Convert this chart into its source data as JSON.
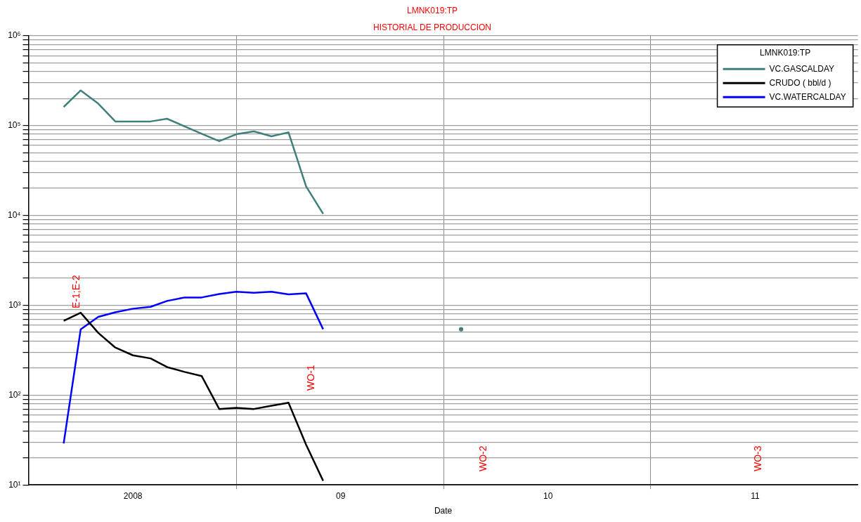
{
  "chart_data": {
    "type": "line",
    "title": "LMNK019:TP",
    "subtitle": "HISTORIAL DE PRODUCCION",
    "xlabel": "Date",
    "legend_title": "LMNK019:TP",
    "legend": "top right",
    "grid": true,
    "log": "y",
    "x": [
      "2007-09-01",
      "2007-10-01",
      "2007-11-01",
      "2007-12-01",
      "2008-01-01",
      "2008-02-01",
      "2008-03-01",
      "2008-04-01",
      "2008-05-01",
      "2008-06-01",
      "2008-07-01",
      "2008-08-01",
      "2008-09-01",
      "2008-10-01",
      "2008-11-01",
      "2008-12-01"
    ],
    "series": [
      {
        "name": "VC.GASCALDAY",
        "color": "#3f7f7c",
        "x": [
          "2007-09-01",
          "2007-10-01",
          "2007-11-01",
          "2007-12-01",
          "2008-01-01",
          "2008-02-01",
          "2008-03-01",
          "2008-04-01",
          "2008-05-01",
          "2008-06-01",
          "2008-07-01",
          "2008-08-01",
          "2008-09-01",
          "2008-10-01",
          "2008-11-01",
          "2008-12-01",
          "2009-01-01",
          "2009-08-01"
        ],
        "values": [
          161000,
          246000,
          175000,
          111000,
          111000,
          111000,
          119000,
          98000,
          81000,
          67000,
          80000,
          86000,
          76000,
          84000,
          21000,
          10400,
          null,
          540
        ]
      },
      {
        "name": "CRUDO ( bbl/d )",
        "color": "#000000",
        "values": [
          670,
          824,
          492,
          338,
          277,
          256,
          205,
          181,
          163,
          70,
          72,
          70,
          76,
          82,
          28,
          11.1
        ]
      },
      {
        "name": "VC.WATERCALDAY",
        "color": "#0000ff",
        "values": [
          29,
          540,
          743,
          834,
          915,
          959,
          1115,
          1220,
          1220,
          1330,
          1413,
          1378,
          1413,
          1322,
          1354,
          540
        ]
      }
    ],
    "xlim": [
      "2007-07-01",
      "2011-07-01"
    ],
    "xticks": [
      {
        "value": "2008-01-01",
        "label": "2008"
      },
      {
        "value": "2008-07-01",
        "label": null
      },
      {
        "value": "2009-01-01",
        "label": "09"
      },
      {
        "value": "2009-07-01",
        "label": null
      },
      {
        "value": "2010-01-01",
        "label": "10"
      },
      {
        "value": "2010-07-01",
        "label": null
      },
      {
        "value": "2011-01-01",
        "label": "11"
      }
    ],
    "ylim": [
      10,
      1000000
    ],
    "yticks": [
      {
        "value": 10,
        "label": "10¹"
      },
      {
        "value": 20,
        "label": null
      },
      {
        "value": 30,
        "label": null
      },
      {
        "value": 40,
        "label": null
      },
      {
        "value": 50,
        "label": null
      },
      {
        "value": 60,
        "label": null
      },
      {
        "value": 70,
        "label": null
      },
      {
        "value": 80,
        "label": null
      },
      {
        "value": 90,
        "label": null
      },
      {
        "value": 100,
        "label": "10²"
      },
      {
        "value": 200,
        "label": null
      },
      {
        "value": 300,
        "label": null
      },
      {
        "value": 400,
        "label": null
      },
      {
        "value": 500,
        "label": null
      },
      {
        "value": 600,
        "label": null
      },
      {
        "value": 700,
        "label": null
      },
      {
        "value": 800,
        "label": null
      },
      {
        "value": 900,
        "label": null
      },
      {
        "value": 1000,
        "label": "10³"
      },
      {
        "value": 2000,
        "label": null
      },
      {
        "value": 3000,
        "label": null
      },
      {
        "value": 4000,
        "label": null
      },
      {
        "value": 5000,
        "label": null
      },
      {
        "value": 6000,
        "label": null
      },
      {
        "value": 7000,
        "label": null
      },
      {
        "value": 8000,
        "label": null
      },
      {
        "value": 9000,
        "label": null
      },
      {
        "value": 10000,
        "label": "10⁴"
      },
      {
        "value": 20000,
        "label": null
      },
      {
        "value": 30000,
        "label": null
      },
      {
        "value": 40000,
        "label": null
      },
      {
        "value": 50000,
        "label": null
      },
      {
        "value": 60000,
        "label": null
      },
      {
        "value": 70000,
        "label": null
      },
      {
        "value": 80000,
        "label": null
      },
      {
        "value": 90000,
        "label": null
      },
      {
        "value": 100000,
        "label": "10⁵"
      },
      {
        "value": 200000,
        "label": null
      },
      {
        "value": 300000,
        "label": null
      },
      {
        "value": 400000,
        "label": null
      },
      {
        "value": 500000,
        "label": null
      },
      {
        "value": 600000,
        "label": null
      },
      {
        "value": 700000,
        "label": null
      },
      {
        "value": 800000,
        "label": null
      },
      {
        "value": 900000,
        "label": null
      },
      {
        "value": 1000000,
        "label": "10⁶"
      }
    ],
    "annotations": [
      "E-1;E-2",
      "WO-1",
      "WO-2",
      "WO-3"
    ]
  }
}
